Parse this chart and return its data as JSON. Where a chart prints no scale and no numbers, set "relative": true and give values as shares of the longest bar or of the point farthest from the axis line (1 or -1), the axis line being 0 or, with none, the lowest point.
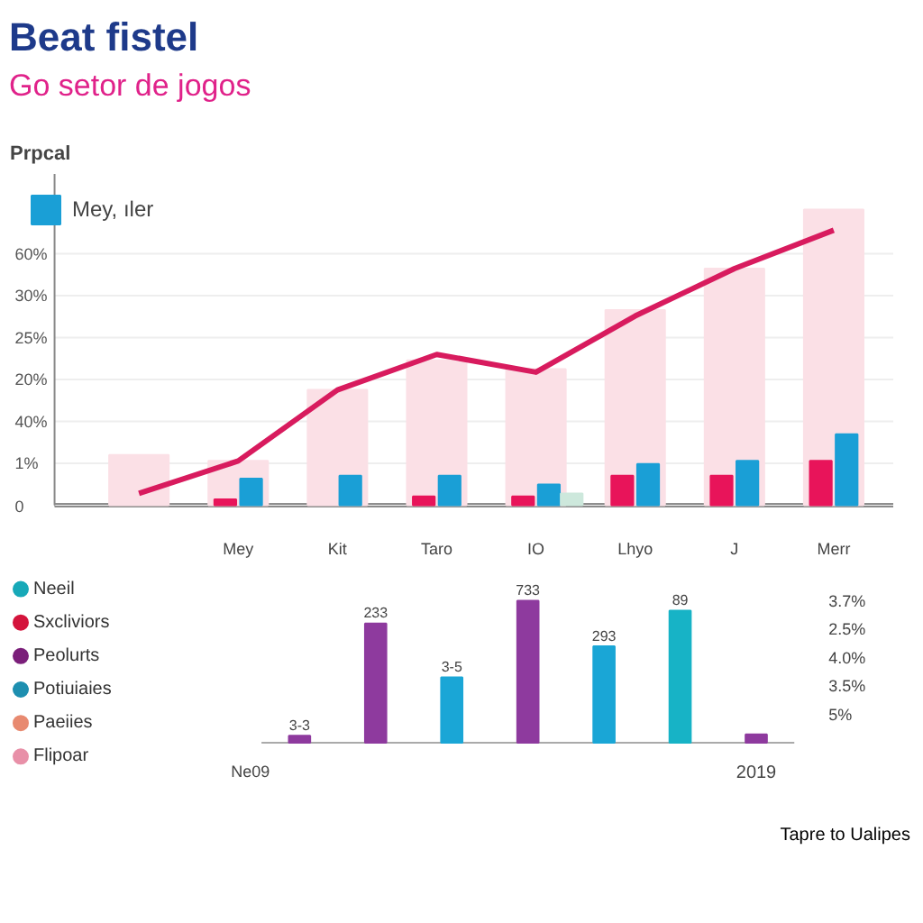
{
  "chart_data": [
    {
      "type": "line",
      "relative": true,
      "title": "Beat fistel",
      "subtitle": "Go setor de jogos",
      "ylabel": "Prpcal",
      "legend": "top left",
      "grid": "y",
      "marker": "none",
      "line_style": "solid",
      "categories": [
        null,
        "Mey",
        "Kit",
        "Taro",
        "IO",
        "Lhyo",
        "J",
        "Merr"
      ],
      "annotations": [
        "60%",
        "30%",
        "25%",
        "20%",
        "40%",
        "1%",
        "0"
      ],
      "series": [
        {
          "type": "bar",
          "color": "#fbe0e6",
          "values": [
            0.17,
            0.15,
            0.39,
            0.49,
            0.46,
            0.66,
            0.8,
            1.0
          ]
        },
        {
          "type": "bar",
          "color": "#e8145a",
          "values": [
            null,
            0.02,
            null,
            0.03,
            0.03,
            0.1,
            0.1,
            0.15
          ]
        },
        {
          "type": "bar",
          "name": "Mey, ıler",
          "color": "#1a9fd6",
          "values": [
            null,
            0.09,
            0.1,
            0.1,
            0.07,
            0.14,
            0.15,
            0.24
          ]
        },
        {
          "type": "bar",
          "color": "#cde8dc",
          "values": [
            null,
            null,
            null,
            null,
            0.04,
            null,
            null,
            null
          ]
        },
        {
          "type": "line",
          "color": "#d81b5e",
          "values": [
            0.04,
            0.15,
            0.39,
            0.51,
            0.45,
            0.64,
            0.8,
            0.93
          ]
        }
      ]
    },
    {
      "type": "other",
      "categories": [
        "Neeil",
        "Sxcliviors",
        "Peolurts",
        "Potiuiaies",
        "Paeiies",
        "Flipoar"
      ],
      "colors": [
        "#17a9b8",
        "#d4143c",
        "#7b1f7a",
        "#1e8fb0",
        "#e88a70",
        "#e890a8"
      ]
    },
    {
      "type": "bar",
      "relative": true,
      "categories": [
        null,
        null,
        null,
        null,
        null,
        null,
        "2019"
      ],
      "values": [
        0.05,
        0.84,
        0.46,
        1,
        0.68,
        0.93,
        0.06
      ],
      "colors": [
        "#8e3a9e",
        "#8e3a9e",
        "#1aa6d6",
        "#8e3a9e",
        "#1aa6d6",
        "#17b3c6",
        "#8e3a9e"
      ],
      "annotations": [
        "3-3",
        "233",
        "3-5",
        "733",
        "293",
        "89",
        "Ne09",
        "3.7%",
        "2.5%",
        "4.0%",
        "3.5%",
        "5%",
        "Tapre to Ualipes"
      ]
    }
  ]
}
